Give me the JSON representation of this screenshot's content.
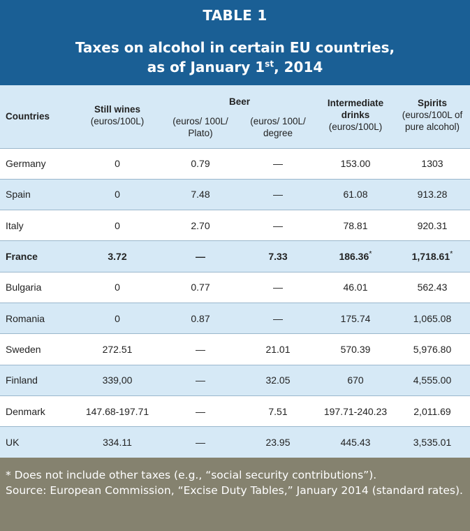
{
  "header": {
    "table_number": "TABLE 1",
    "title_line1": "Taxes on alcohol in certain EU countries,",
    "title_line2_pre": "as of January 1",
    "title_line2_sup": "st",
    "title_line2_post": ", 2014"
  },
  "columns": {
    "countries": "Countries",
    "still_wines": "Still wines",
    "still_wines_unit": "(euros/100L)",
    "beer": "Beer",
    "beer_plato": "(euros/ 100L/ Plato)",
    "beer_degree": "(euros/ 100L/ degree",
    "intermediate": "Intermediate drinks",
    "intermediate_unit": "(euros/100L)",
    "spirits": "Spirits",
    "spirits_unit": "(euros/100L of pure alcohol)"
  },
  "rows": [
    {
      "country": "Germany",
      "still_wines": "0",
      "beer_plato": "0.79",
      "beer_degree": "—",
      "intermediate": "153.00",
      "spirits": "1303"
    },
    {
      "country": "Spain",
      "still_wines": "0",
      "beer_plato": "7.48",
      "beer_degree": "—",
      "intermediate": "61.08",
      "spirits": "913.28"
    },
    {
      "country": "Italy",
      "still_wines": "0",
      "beer_plato": "2.70",
      "beer_degree": "—",
      "intermediate": "78.81",
      "spirits": "920.31"
    },
    {
      "country": "France",
      "still_wines": "3.72",
      "beer_plato": "—",
      "beer_degree": "7.33",
      "intermediate": "186.36",
      "intermediate_note": "*",
      "spirits": "1,718.61",
      "spirits_note": "*"
    },
    {
      "country": "Bulgaria",
      "still_wines": "0",
      "beer_plato": "0.77",
      "beer_degree": "—",
      "intermediate": "46.01",
      "spirits": "562.43"
    },
    {
      "country": "Romania",
      "still_wines": "0",
      "beer_plato": "0.87",
      "beer_degree": "—",
      "intermediate": "175.74",
      "spirits": "1,065.08"
    },
    {
      "country": "Sweden",
      "still_wines": "272.51",
      "beer_plato": "—",
      "beer_degree": "21.01",
      "intermediate": "570.39",
      "spirits": "5,976.80"
    },
    {
      "country": "Finland",
      "still_wines": "339,00",
      "beer_plato": "—",
      "beer_degree": "32.05",
      "intermediate": "670",
      "spirits": "4,555.00"
    },
    {
      "country": "Denmark",
      "still_wines": "147.68-197.71",
      "beer_plato": "—",
      "beer_degree": "7.51",
      "intermediate": "197.71-240.23",
      "spirits": "2,011.69"
    },
    {
      "country": "UK",
      "still_wines": "334.11",
      "beer_plato": "—",
      "beer_degree": "23.95",
      "intermediate": "445.43",
      "spirits": "3,535.01"
    }
  ],
  "footer": {
    "note": "* Does not include other taxes (e.g., “social security contributions”).",
    "source": "Source: European Commission, “Excise Duty Tables,” January 2014 (standard rates)."
  },
  "colors": {
    "header_bg": "#1a5f95",
    "row_alt_bg": "#d6e9f6",
    "footer_bg": "#85826f"
  }
}
